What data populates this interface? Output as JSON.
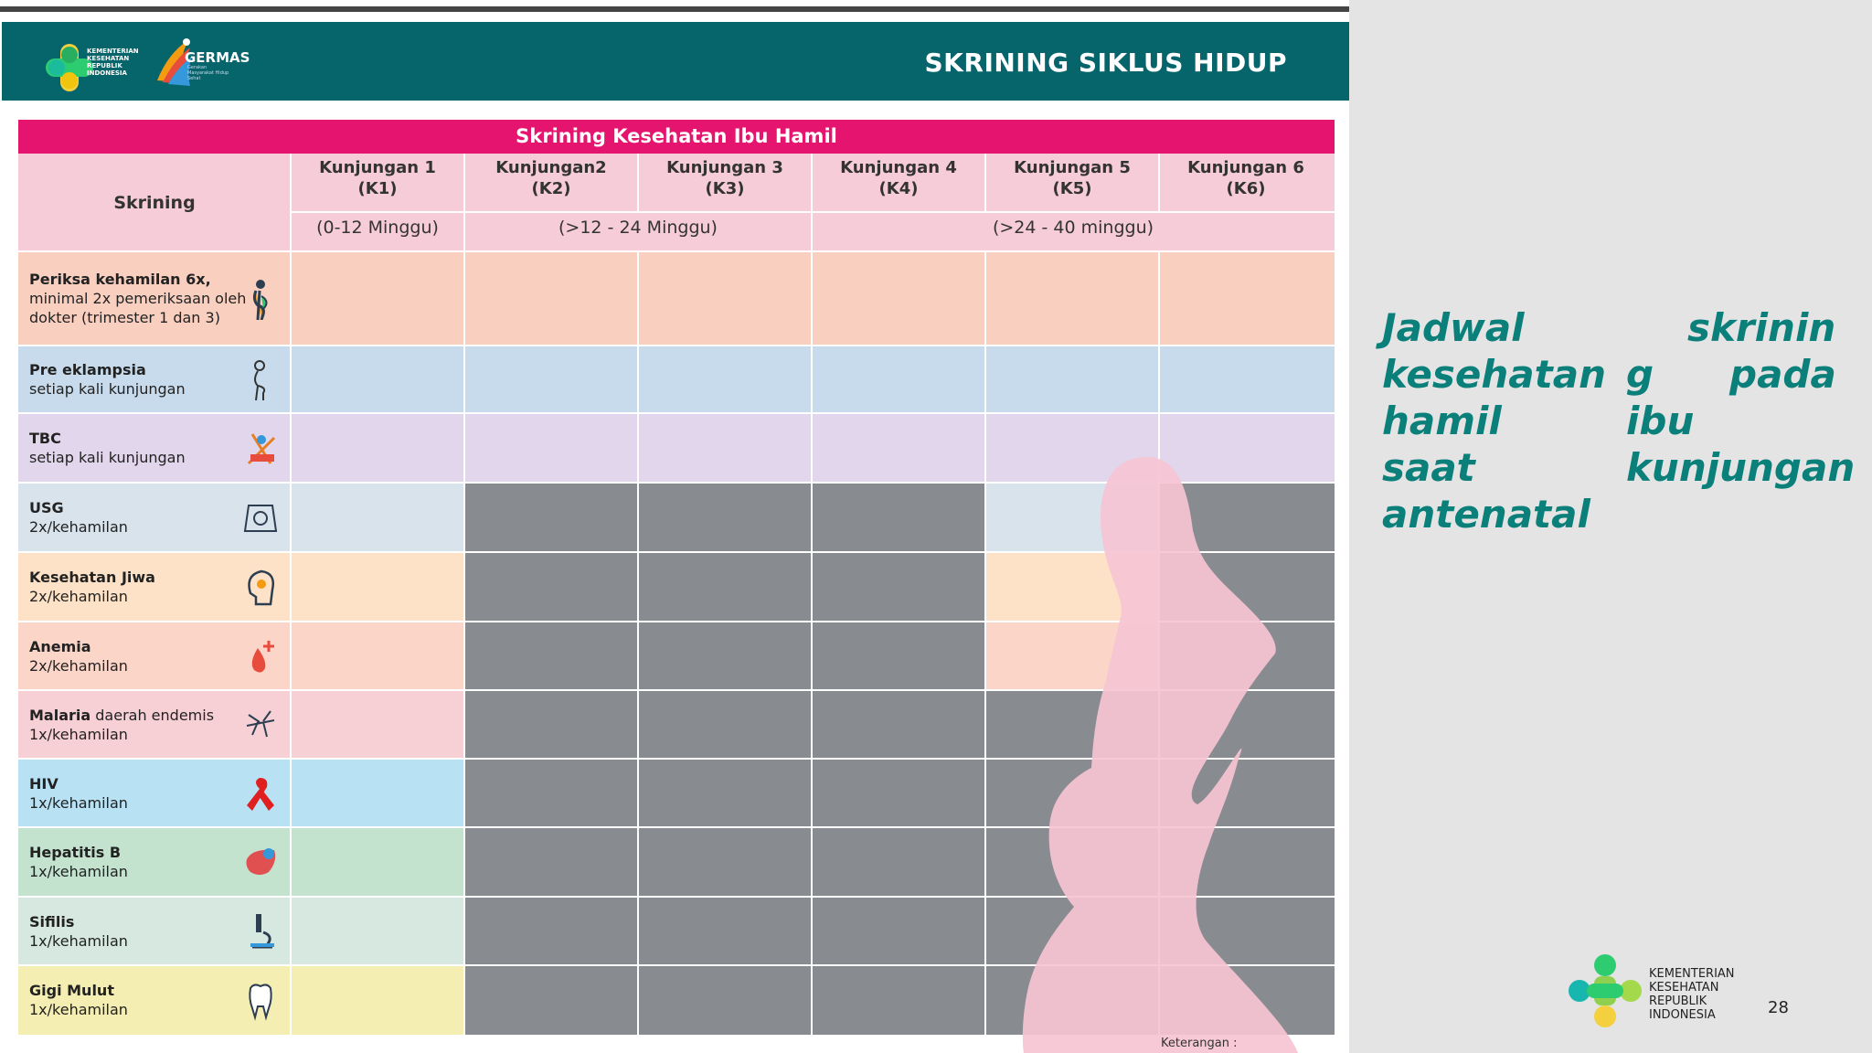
{
  "header": {
    "title": "SKRINING SIKLUS HIDUP",
    "logo_small_text": [
      "KEMENTERIAN",
      "KESEHATAN",
      "REPUBLIK",
      "INDONESIA"
    ],
    "germas_text": "GERMAS",
    "germas_sub": "Gerakan Masyarakat Hidup Sehat"
  },
  "table": {
    "title": "Skrining Kesehatan Ibu Hamil",
    "skrining_header": "Skrining",
    "visits": [
      {
        "line1": "Kunjungan 1",
        "line2": "(K1)"
      },
      {
        "line1": "Kunjungan2",
        "line2": "(K2)"
      },
      {
        "line1": "Kunjungan 3",
        "line2": "(K3)"
      },
      {
        "line1": "Kunjungan 4",
        "line2": "(K4)"
      },
      {
        "line1": "Kunjungan 5",
        "line2": "(K5)"
      },
      {
        "line1": "Kunjungan 6",
        "line2": "(K6)"
      }
    ],
    "ranges": [
      "(0-12 Minggu)",
      "(>12 - 24 Minggu)",
      "(>24 - 40 minggu)"
    ],
    "rows": [
      {
        "bold": "Periksa kehamilan 6x,",
        "rest": "",
        "line2": "minimal 2x pemeriksaan oleh",
        "line3": "dokter (trimester 1 dan 3)",
        "icon": "pregnant-woman-icon",
        "color": "#f9cfc0",
        "active": [
          1,
          1,
          1,
          1,
          1,
          1
        ]
      },
      {
        "bold": "Pre eklampsia",
        "rest": "",
        "line2": "setiap kali kunjungan",
        "line3": "",
        "icon": "pregnant-outline-icon",
        "color": "#c7dbec",
        "active": [
          1,
          1,
          1,
          1,
          1,
          1
        ]
      },
      {
        "bold": "TBC",
        "rest": "",
        "line2": "setiap kali kunjungan",
        "line3": "",
        "icon": "tbc-icon",
        "color": "#e2d6ec",
        "active": [
          1,
          1,
          1,
          1,
          1,
          1
        ]
      },
      {
        "bold": "USG",
        "rest": "",
        "line2": "2x/kehamilan",
        "line3": "",
        "icon": "ultrasound-icon",
        "color": "#d9e3ec",
        "active": [
          1,
          0,
          0,
          0,
          1,
          0
        ]
      },
      {
        "bold": "Kesehatan Jiwa",
        "rest": "",
        "line2": "2x/kehamilan",
        "line3": "",
        "icon": "mental-health-icon",
        "color": "#fde2c7",
        "active": [
          1,
          0,
          0,
          0,
          1,
          0
        ]
      },
      {
        "bold": "Anemia",
        "rest": "",
        "line2": "2x/kehamilan",
        "line3": "",
        "icon": "blood-drop-icon",
        "color": "#fbd5c8",
        "active": [
          1,
          0,
          0,
          0,
          1,
          0
        ]
      },
      {
        "bold": "Malaria",
        "rest": " daerah endemis",
        "line2": "1x/kehamilan",
        "line3": "",
        "icon": "mosquito-icon",
        "color": "#f7d0d6",
        "active": [
          1,
          0,
          0,
          0,
          0,
          0
        ]
      },
      {
        "bold": "HIV",
        "rest": "",
        "line2": "1x/kehamilan",
        "line3": "",
        "icon": "ribbon-icon",
        "color": "#b8e1f3",
        "active": [
          1,
          0,
          0,
          0,
          0,
          0
        ]
      },
      {
        "bold": "Hepatitis B",
        "rest": "",
        "line2": "1x/kehamilan",
        "line3": "",
        "icon": "liver-icon",
        "color": "#c3e3cf",
        "active": [
          1,
          0,
          0,
          0,
          0,
          0
        ]
      },
      {
        "bold": "Sifilis",
        "rest": "",
        "line2": "1x/kehamilan",
        "line3": "",
        "icon": "microscope-icon",
        "color": "#d7e8e0",
        "active": [
          1,
          0,
          0,
          0,
          0,
          0
        ]
      },
      {
        "bold": "Gigi Mulut",
        "rest": "",
        "line2": "1x/kehamilan",
        "line3": "",
        "icon": "tooth-icon",
        "color": "#f4eeb3",
        "active": [
          1,
          0,
          0,
          0,
          0,
          0
        ]
      }
    ],
    "inactive_color": "#888b8f",
    "keterangan": "Keterangan :"
  },
  "right": {
    "lines": [
      [
        "Jadwal",
        "skrinin"
      ],
      [
        "kesehatan",
        "g",
        "pada"
      ],
      [
        "hamil",
        "ibu"
      ],
      [
        "saat",
        "kunjungan"
      ],
      [
        "antenatal"
      ]
    ],
    "logo_text": [
      "KEMENTERIAN",
      "KESEHATAN",
      "REPUBLIK",
      "INDONESIA"
    ],
    "page_number": "28",
    "accent": "#0b7f7a"
  }
}
